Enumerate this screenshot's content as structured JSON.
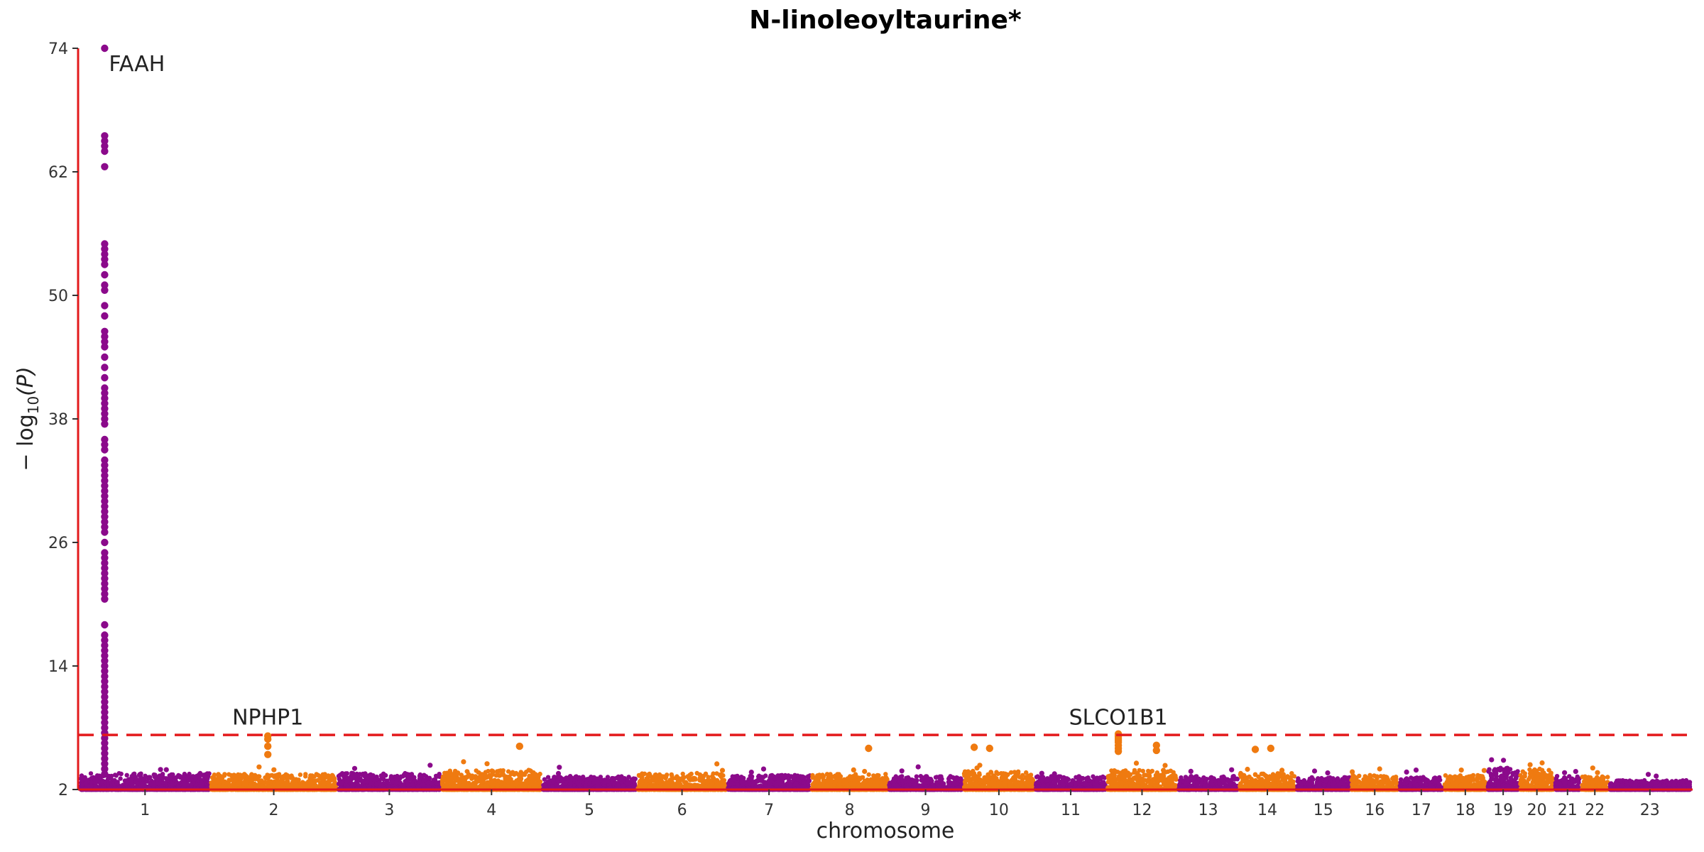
{
  "chart_data": {
    "type": "scatter",
    "title": "N-linoleoyltaurine*",
    "xlabel": "chromosome",
    "ylabel_main": "− log",
    "ylabel_sub": "10",
    "ylabel_tail": "(P)",
    "yticks": [
      "2",
      "14",
      "26",
      "38",
      "50",
      "62",
      "74"
    ],
    "ylim": [
      2,
      74
    ],
    "significance_threshold": 7.3,
    "colors": {
      "odd_chromosome": "#8b0a8b",
      "even_chromosome": "#ef7a10",
      "axis": "#e31a1c",
      "threshold": "#e31a1c"
    },
    "chromosomes": [
      {
        "label": "1",
        "length": 249,
        "background_max": 3.6,
        "color": "purple"
      },
      {
        "label": "2",
        "length": 243,
        "background_max": 3.5,
        "color": "orange"
      },
      {
        "label": "3",
        "length": 198,
        "background_max": 3.6,
        "color": "purple"
      },
      {
        "label": "4",
        "length": 191,
        "background_max": 3.9,
        "color": "orange"
      },
      {
        "label": "5",
        "length": 181,
        "background_max": 3.3,
        "color": "purple"
      },
      {
        "label": "6",
        "length": 171,
        "background_max": 3.6,
        "color": "orange"
      },
      {
        "label": "7",
        "length": 159,
        "background_max": 3.4,
        "color": "purple"
      },
      {
        "label": "8",
        "length": 146,
        "background_max": 3.5,
        "color": "orange"
      },
      {
        "label": "9",
        "length": 141,
        "background_max": 3.3,
        "color": "purple"
      },
      {
        "label": "10",
        "length": 136,
        "background_max": 3.8,
        "color": "orange"
      },
      {
        "label": "11",
        "length": 135,
        "background_max": 3.3,
        "color": "purple"
      },
      {
        "label": "12",
        "length": 134,
        "background_max": 3.9,
        "color": "orange"
      },
      {
        "label": "13",
        "length": 115,
        "background_max": 3.3,
        "color": "purple"
      },
      {
        "label": "14",
        "length": 107,
        "background_max": 3.6,
        "color": "orange"
      },
      {
        "label": "15",
        "length": 102,
        "background_max": 3.2,
        "color": "purple"
      },
      {
        "label": "16",
        "length": 90,
        "background_max": 3.4,
        "color": "orange"
      },
      {
        "label": "17",
        "length": 83,
        "background_max": 3.2,
        "color": "purple"
      },
      {
        "label": "18",
        "length": 80,
        "background_max": 3.4,
        "color": "orange"
      },
      {
        "label": "19",
        "length": 59,
        "background_max": 4.1,
        "color": "purple"
      },
      {
        "label": "20",
        "length": 64,
        "background_max": 4.0,
        "color": "orange"
      },
      {
        "label": "21",
        "length": 47,
        "background_max": 3.4,
        "color": "purple"
      },
      {
        "label": "22",
        "length": 51,
        "background_max": 3.3,
        "color": "orange"
      },
      {
        "label": "23",
        "length": 155,
        "background_max": 2.9,
        "color": "purple"
      }
    ],
    "peak_points": [
      {
        "chromosome": "1",
        "position": 46,
        "values": [
          74.0,
          65.5,
          65.0,
          64.5,
          64.0,
          62.5,
          55.0,
          54.5,
          54.0,
          53.5,
          53.0,
          52.0,
          51.0,
          50.5,
          49.0,
          48.0,
          46.5,
          46.0,
          45.5,
          45.0,
          44.0,
          43.0,
          42.0,
          41.0,
          40.5,
          40.0,
          39.5,
          39.0,
          38.5,
          38.0,
          37.5,
          36.0,
          35.5,
          35.0,
          34.0,
          33.5,
          33.0,
          32.5,
          32.0,
          31.5,
          31.0,
          30.5,
          30.0,
          29.5,
          29.0,
          28.5,
          28.0,
          27.5,
          27.0,
          26.0,
          25.0,
          24.5,
          24.0,
          23.5,
          23.0,
          22.5,
          22.0,
          21.5,
          21.0,
          20.5,
          18.0,
          17.0,
          16.5,
          16.0,
          15.5,
          15.0,
          14.5,
          14.0,
          13.5,
          13.0,
          12.5,
          12.0,
          11.5,
          11.0,
          10.5,
          10.0,
          9.5,
          9.0,
          8.5,
          8.0,
          7.5,
          7.0,
          6.5,
          6.0,
          5.5,
          5.0,
          4.5,
          4.0,
          3.5
        ]
      },
      {
        "chromosome": "2",
        "position": 110,
        "values": [
          7.2,
          6.9,
          6.2,
          5.4
        ]
      },
      {
        "chromosome": "12",
        "position": 21,
        "values": [
          7.4,
          7.2,
          7.0,
          6.8,
          6.6,
          6.3,
          6.0,
          5.7
        ]
      },
      {
        "chromosome": "4",
        "position": 150,
        "values": [
          6.2
        ]
      },
      {
        "chromosome": "8",
        "position": 110,
        "values": [
          6.0
        ]
      },
      {
        "chromosome": "10",
        "position": 20,
        "values": [
          6.1
        ]
      },
      {
        "chromosome": "10",
        "position": 50,
        "values": [
          6.0
        ]
      },
      {
        "chromosome": "12",
        "position": 95,
        "values": [
          6.3,
          5.8
        ]
      },
      {
        "chromosome": "14",
        "position": 30,
        "values": [
          5.9
        ]
      },
      {
        "chromosome": "14",
        "position": 60,
        "values": [
          6.0
        ]
      }
    ],
    "annotations": [
      {
        "text": "FAAH",
        "chromosome": "1",
        "position": 46,
        "y": 71.8
      },
      {
        "text": "NPHP1",
        "chromosome": "2",
        "position": 110,
        "y": 8.3
      },
      {
        "text": "SLCO1B1",
        "chromosome": "12",
        "position": 21,
        "y": 8.3
      }
    ]
  }
}
